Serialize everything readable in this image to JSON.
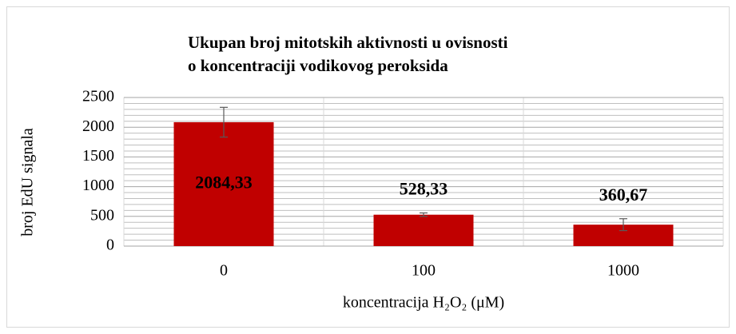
{
  "chart_data": {
    "type": "bar",
    "title": [
      "Ukupan broj mitotskih aktivnosti u ovisnosti",
      "o koncentraciji vodikovog peroksida"
    ],
    "xlabel": "koncentracija H₂O₂  (μM)",
    "ylabel": "broj EdU signala",
    "categories": [
      "0",
      "100",
      "1000"
    ],
    "values": [
      2084.33,
      528.33,
      360.67
    ],
    "value_labels": [
      "2084,33",
      "528,33",
      "360,67"
    ],
    "errors": [
      250,
      30,
      100
    ],
    "color": "#c00000",
    "ylim": [
      0,
      2500
    ],
    "yticks": [
      0,
      500,
      1000,
      1500,
      2000,
      2500
    ],
    "minor_yticks": [
      100,
      200,
      300,
      400,
      600,
      700,
      800,
      900,
      1100,
      1200,
      1300,
      1400,
      1600,
      1700,
      1800,
      1900,
      2100,
      2200,
      2300,
      2400
    ],
    "grid": true
  }
}
